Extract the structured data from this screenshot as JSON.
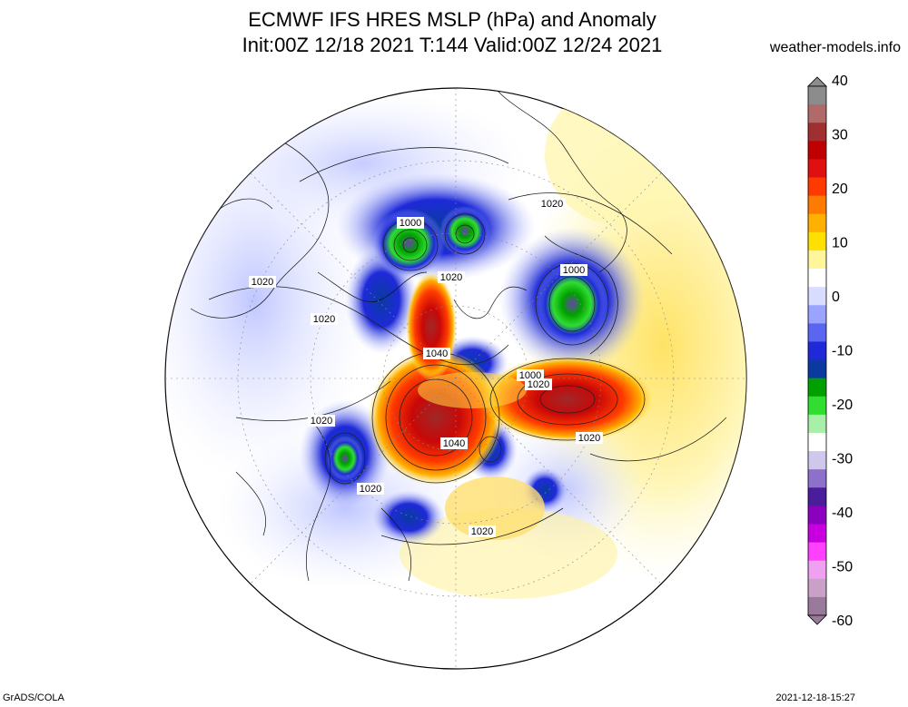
{
  "title_line1": "ECMWF IFS HRES MSLP (hPa) and Anomaly",
  "title_line2": "Init:00Z 12/18 2021 T:144 Valid:00Z 12/24 2021",
  "website": "weather-models.info",
  "footer_left": "GrADS/COLA",
  "footer_right": "2021-12-18-15:27",
  "colorbar": {
    "labels": [
      "40",
      "30",
      "20",
      "10",
      "0",
      "-10",
      "-20",
      "-30",
      "-40",
      "-50",
      "-60"
    ],
    "colors": [
      "#8c8c8c",
      "#b06a6a",
      "#a03030",
      "#c00000",
      "#e01010",
      "#ff3a00",
      "#ff7a00",
      "#ffb000",
      "#ffe000",
      "#fff59a",
      "#ffffff",
      "#d8dcff",
      "#9aa4ff",
      "#5a66f0",
      "#1e2ad8",
      "#0a3aa0",
      "#00a000",
      "#30dd30",
      "#a8f0a8",
      "#ffffff",
      "#d0c8ec",
      "#8c70cc",
      "#4a1e9a",
      "#8c00c0",
      "#c800e0",
      "#ff40ff",
      "#f0a0f0",
      "#c8a0c8",
      "#9a7a9a"
    ]
  },
  "contour_labels": [
    {
      "text": "1000",
      "id": "l1000a"
    },
    {
      "text": "1020",
      "id": "l1020a"
    },
    {
      "text": "1020",
      "id": "l1020b"
    },
    {
      "text": "1000",
      "id": "l1000b"
    },
    {
      "text": "1020",
      "id": "l1020c"
    },
    {
      "text": "1020",
      "id": "l1020d"
    },
    {
      "text": "1040",
      "id": "l1040a"
    },
    {
      "text": "1000",
      "id": "l1000c"
    },
    {
      "text": "1020",
      "id": "l1020e"
    },
    {
      "text": "1020",
      "id": "l1020f"
    },
    {
      "text": "1040",
      "id": "l1040b"
    },
    {
      "text": "1020",
      "id": "l1020g"
    },
    {
      "text": "1020",
      "id": "l1020h"
    },
    {
      "text": "1020",
      "id": "l1020i"
    }
  ]
}
